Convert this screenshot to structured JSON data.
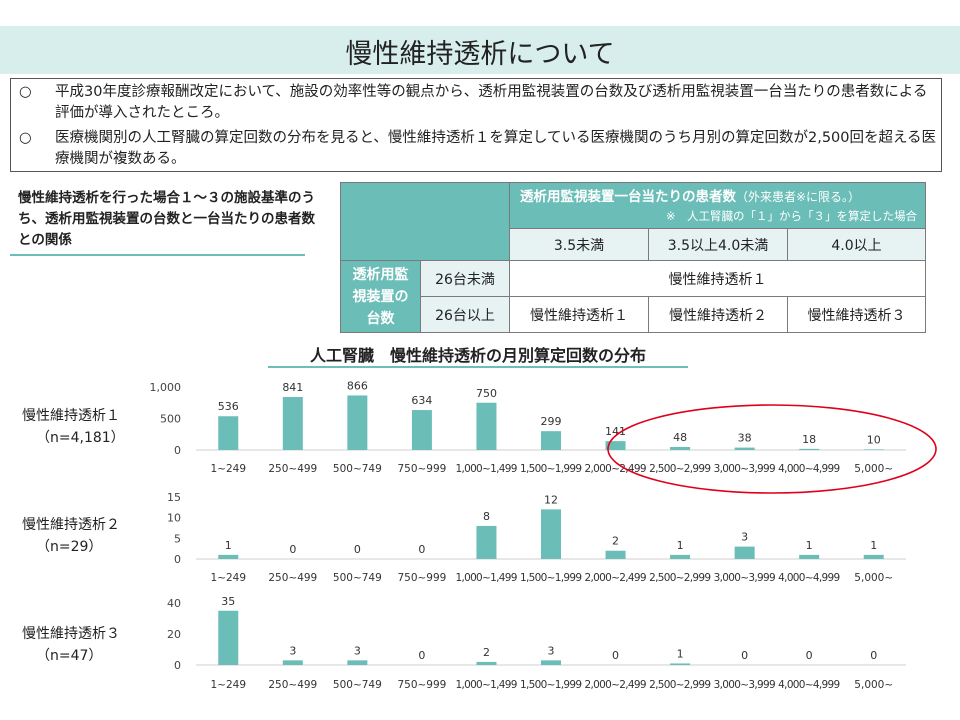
{
  "page_title": "慢性維持透析について",
  "notes": [
    {
      "mark": "○",
      "text": "平成30年度診療報酬改定において、施設の効率性等の観点から、透析用監視装置の台数及び透析用監視装置一台当たりの患者数による評価が導入されたところ。"
    },
    {
      "mark": "○",
      "text": "医療機関別の人工腎臓の算定回数の分布を見ると、慢性維持透析１を算定している医療機関のうち月別の算定回数が2,500回を超える医療機関が複数ある。"
    }
  ],
  "side_heading": "慢性維持透析を行った場合１～３の施設基準のうち、透析用監視装置の台数と一台当たりの患者数との関係",
  "matrix": {
    "col_header_main": "透析用監視装置一台当たりの患者数",
    "col_header_paren": "（外来患者※に限る。）",
    "col_header_note": "※　人工腎臓の「１」から「３」を算定した場合",
    "col_labels": [
      "3.5未満",
      "3.5以上4.0未満",
      "4.0以上"
    ],
    "row_header": "透析用監視装置の台数",
    "rows": [
      {
        "label": "26台未満",
        "merged": "慢性維持透析１"
      },
      {
        "label": "26台以上",
        "cells": [
          "慢性維持透析１",
          "慢性維持透析２",
          "慢性維持透析３"
        ]
      }
    ]
  },
  "chart_title": "人工腎臓　慢性維持透析の月別算定回数の分布",
  "accent_color": "#6bbdb8",
  "highlight_color": "#e0001b",
  "chart_data": [
    {
      "type": "bar",
      "name": "慢性維持透析１",
      "label_line1": "慢性維持透析１",
      "label_line2": "（n=4,181）",
      "categories": [
        "1~249",
        "250~499",
        "500~749",
        "750~999",
        "1,000~1,499",
        "1,500~1,999",
        "2,000~2,499",
        "2,500~2,999",
        "3,000~3,999",
        "4,000~4,999",
        "5,000~"
      ],
      "values": [
        536,
        841,
        866,
        634,
        750,
        299,
        141,
        48,
        38,
        18,
        10
      ],
      "ylim": [
        0,
        1000
      ],
      "yticks": [
        0,
        500,
        1000
      ],
      "ytick_labels": [
        "0",
        "500",
        "1,000"
      ]
    },
    {
      "type": "bar",
      "name": "慢性維持透析２",
      "label_line1": "慢性維持透析２",
      "label_line2": "（n=29）",
      "categories": [
        "1~249",
        "250~499",
        "500~749",
        "750~999",
        "1,000~1,499",
        "1,500~1,999",
        "2,000~2,499",
        "2,500~2,999",
        "3,000~3,999",
        "4,000~4,999",
        "5,000~"
      ],
      "values": [
        1,
        0,
        0,
        0,
        8,
        12,
        2,
        1,
        3,
        1,
        1
      ],
      "ylim": [
        0,
        15
      ],
      "yticks": [
        0,
        5,
        10,
        15
      ],
      "ytick_labels": [
        "0",
        "5",
        "10",
        "15"
      ]
    },
    {
      "type": "bar",
      "name": "慢性維持透析３",
      "label_line1": "慢性維持透析３",
      "label_line2": "（n=47）",
      "categories": [
        "1~249",
        "250~499",
        "500~749",
        "750~999",
        "1,000~1,499",
        "1,500~1,999",
        "2,000~2,499",
        "2,500~2,999",
        "3,000~3,999",
        "4,000~4,999",
        "5,000~"
      ],
      "values": [
        35,
        3,
        3,
        0,
        2,
        3,
        0,
        1,
        0,
        0,
        0
      ],
      "ylim": [
        0,
        40
      ],
      "yticks": [
        0,
        20,
        40
      ],
      "ytick_labels": [
        "0",
        "20",
        "40"
      ]
    }
  ]
}
